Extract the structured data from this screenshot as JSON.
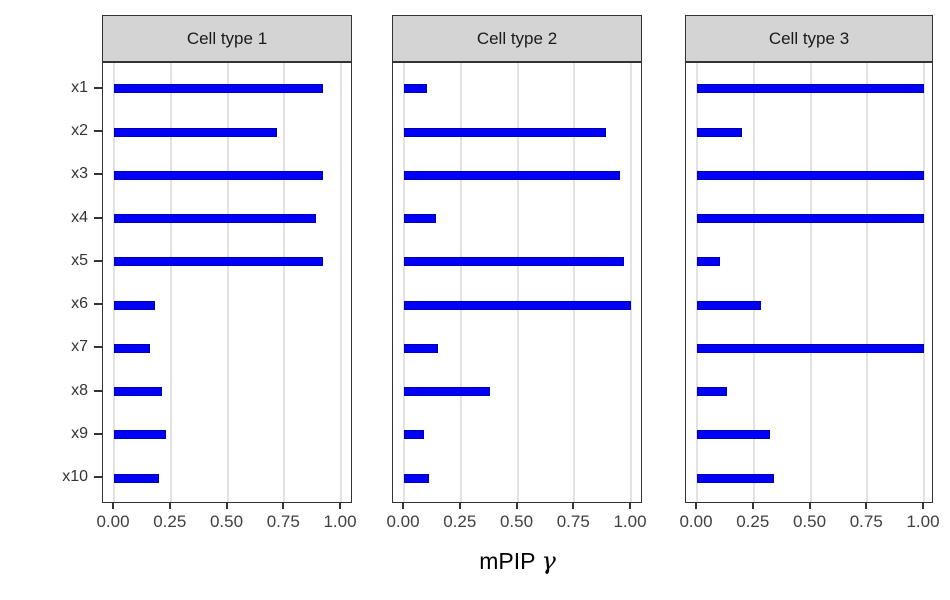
{
  "chart_data": {
    "type": "bar",
    "orientation": "horizontal",
    "title": "",
    "xlabel": "mPIP γ",
    "xlabel_main": "mPIP",
    "xlabel_symbol": "γ",
    "ylabel": "",
    "categories": [
      "x1",
      "x2",
      "x3",
      "x4",
      "x5",
      "x6",
      "x7",
      "x8",
      "x9",
      "x10"
    ],
    "x_ticks": [
      "0.00",
      "0.25",
      "0.50",
      "0.75",
      "1.00"
    ],
    "x_tick_values": [
      0,
      0.25,
      0.5,
      0.75,
      1.0
    ],
    "xlim": [
      0,
      1
    ],
    "grid": "vertical-major-only",
    "legend": "none",
    "facets": [
      {
        "label": "Cell type 1",
        "values": [
          0.92,
          0.72,
          0.92,
          0.89,
          0.92,
          0.18,
          0.16,
          0.21,
          0.23,
          0.2
        ]
      },
      {
        "label": "Cell type 2",
        "values": [
          0.1,
          0.89,
          0.95,
          0.14,
          0.97,
          1.0,
          0.15,
          0.38,
          0.09,
          0.11
        ]
      },
      {
        "label": "Cell type 3",
        "values": [
          1.0,
          0.2,
          1.0,
          1.0,
          0.1,
          0.28,
          1.0,
          0.13,
          0.32,
          0.34
        ]
      }
    ],
    "colors": {
      "bar": "#0000fa",
      "bar_border": "#0000b0",
      "strip_bg": "#d4d4d4",
      "panel_border": "#333333",
      "gridline": "#e2e2e2",
      "tick_label": "#404040",
      "axis_title": "#000000",
      "background": "#ffffff"
    }
  }
}
